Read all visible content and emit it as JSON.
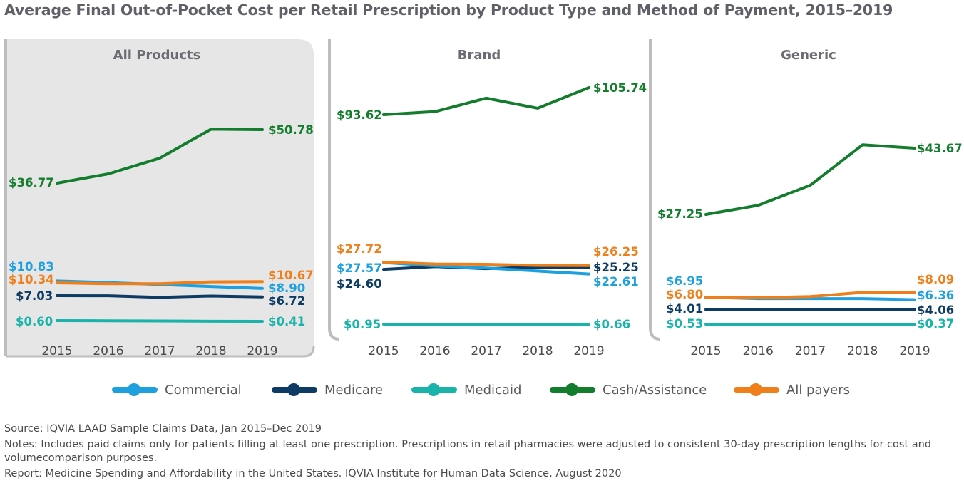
{
  "title": "Average Final Out-of-Pocket Cost per Retail Prescription by Product Type and Method of Payment, 2015–2019",
  "colors": {
    "Commercial": "#1ea0de",
    "Medicare": "#0d3b63",
    "Medicaid": "#19b3aa",
    "Cash/Assistance": "#147d2d",
    "All payers": "#ee7f1a",
    "panel_border": "#bdbdbd",
    "panel_shade": "#e6e6e6"
  },
  "legend": [
    "Commercial",
    "Medicare",
    "Medicaid",
    "Cash/Assistance",
    "All payers"
  ],
  "chart_data": [
    {
      "type": "line",
      "title": "All Products",
      "x": [
        "2015",
        "2016",
        "2017",
        "2018",
        "2019"
      ],
      "series": [
        {
          "name": "Cash/Assistance",
          "values": [
            36.77,
            39.2,
            43.3,
            50.9,
            50.78
          ],
          "labels": [
            "$36.77",
            "$50.78"
          ]
        },
        {
          "name": "Commercial",
          "values": [
            10.83,
            10.4,
            9.9,
            9.4,
            8.9
          ],
          "labels": [
            "$10.83",
            "$8.90"
          ]
        },
        {
          "name": "All payers",
          "values": [
            10.34,
            10.1,
            10.1,
            10.6,
            10.67
          ],
          "labels": [
            "$10.34",
            "$10.67"
          ]
        },
        {
          "name": "Medicare",
          "values": [
            7.03,
            7.0,
            6.6,
            6.95,
            6.72
          ],
          "labels": [
            "$7.03",
            "$6.72"
          ]
        },
        {
          "name": "Medicaid",
          "values": [
            0.6,
            0.55,
            0.5,
            0.45,
            0.41
          ],
          "labels": [
            "$0.60",
            "$0.41"
          ]
        }
      ]
    },
    {
      "type": "line",
      "title": "Brand",
      "x": [
        "2015",
        "2016",
        "2017",
        "2018",
        "2019"
      ],
      "series": [
        {
          "name": "Cash/Assistance",
          "values": [
            93.62,
            95.0,
            101.0,
            96.5,
            105.74
          ],
          "labels": [
            "$93.62",
            "$105.74"
          ]
        },
        {
          "name": "All payers",
          "values": [
            27.72,
            26.9,
            26.8,
            26.3,
            26.25
          ],
          "labels": [
            "$27.72",
            "$26.25"
          ]
        },
        {
          "name": "Commercial",
          "values": [
            27.57,
            26.1,
            25.2,
            23.9,
            22.61
          ],
          "labels": [
            "$27.57",
            "$22.61"
          ]
        },
        {
          "name": "Medicare",
          "values": [
            24.6,
            25.8,
            24.9,
            25.6,
            25.25
          ],
          "labels": [
            "$24.60",
            "$25.25"
          ]
        },
        {
          "name": "Medicaid",
          "values": [
            0.95,
            0.88,
            0.8,
            0.72,
            0.66
          ],
          "labels": [
            "$0.95",
            "$0.66"
          ]
        }
      ]
    },
    {
      "type": "line",
      "title": "Generic",
      "x": [
        "2015",
        "2016",
        "2017",
        "2018",
        "2019"
      ],
      "series": [
        {
          "name": "Cash/Assistance",
          "values": [
            27.25,
            29.5,
            34.5,
            44.5,
            43.67
          ],
          "labels": [
            "$27.25",
            "$43.67"
          ]
        },
        {
          "name": "Commercial",
          "values": [
            6.95,
            6.6,
            6.6,
            6.6,
            6.36
          ],
          "labels": [
            "$6.95",
            "$6.36"
          ]
        },
        {
          "name": "All payers",
          "values": [
            6.8,
            6.8,
            7.1,
            8.1,
            8.09
          ],
          "labels": [
            "$6.80",
            "$8.09"
          ]
        },
        {
          "name": "Medicare",
          "values": [
            4.01,
            4.03,
            4.04,
            4.05,
            4.06
          ],
          "labels": [
            "$4.01",
            "$4.06"
          ]
        },
        {
          "name": "Medicaid",
          "values": [
            0.53,
            0.5,
            0.45,
            0.4,
            0.37
          ],
          "labels": [
            "$0.53",
            "$0.37"
          ]
        }
      ]
    }
  ],
  "footnotes": {
    "source": "Source: IQVIA LAAD Sample Claims Data, Jan 2015–Dec 2019",
    "notes": "Notes: Includes paid claims only for patients filling at least one prescription. Prescriptions in retail pharmacies were adjusted to consistent 30-day prescription lengths for cost and volumecomparison purposes.",
    "report": "Report: Medicine Spending and Affordability in the United States. IQVIA Institute for Human Data Science, August 2020"
  }
}
